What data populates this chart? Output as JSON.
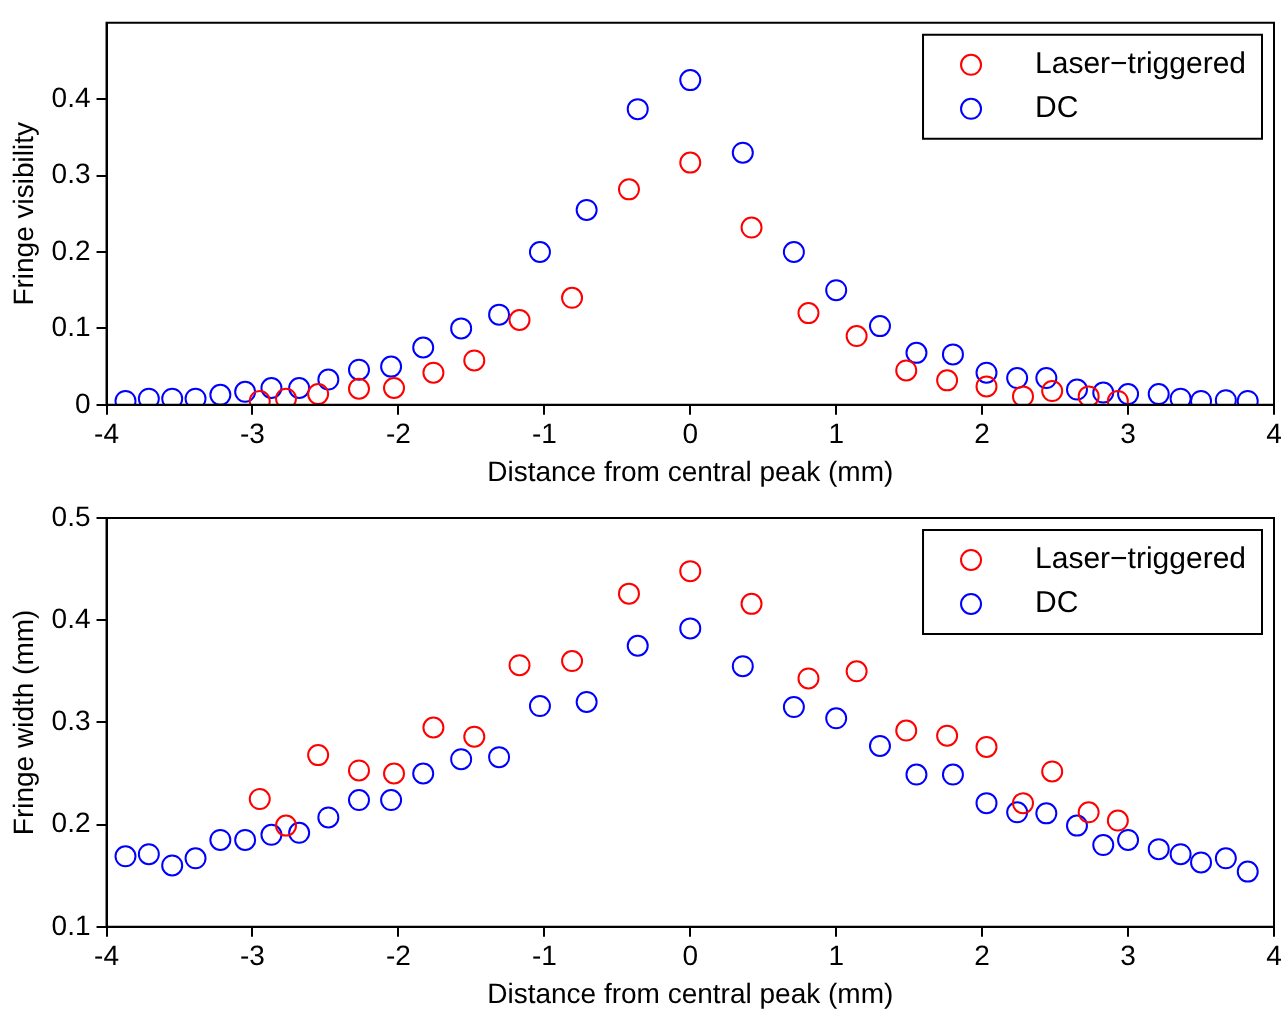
{
  "chart_data": [
    {
      "type": "scatter",
      "xlabel": "Distance from central peak (mm)",
      "ylabel": "Fringe visibility",
      "xlim": [
        -4,
        4
      ],
      "xticks": [
        -4,
        -3,
        -2,
        -1,
        0,
        1,
        2,
        3,
        4
      ],
      "ylim": [
        0,
        0.5
      ],
      "yticks": [
        0,
        0.1,
        0.2,
        0.3,
        0.4
      ],
      "legend": "top right",
      "marker": "circle",
      "grid": false,
      "series": [
        {
          "name": "Laser−triggered",
          "color": "#ff0000",
          "x": [
            -2.95,
            -2.77,
            -2.55,
            -2.27,
            -2.03,
            -1.76,
            -1.48,
            -1.17,
            -0.81,
            -0.42,
            0,
            0.42,
            0.81,
            1.14,
            1.48,
            1.76,
            2.03,
            2.28,
            2.48,
            2.73,
            2.93
          ],
          "values": [
            0.005,
            0.008,
            0.014,
            0.021,
            0.022,
            0.042,
            0.058,
            0.111,
            0.14,
            0.282,
            0.317,
            0.232,
            0.12,
            0.09,
            0.045,
            0.032,
            0.024,
            0.011,
            0.018,
            0.011,
            0.005
          ]
        },
        {
          "name": "DC",
          "color": "#0000ff",
          "x": [
            -3.87,
            -3.71,
            -3.55,
            -3.39,
            -3.22,
            -3.05,
            -2.87,
            -2.68,
            -2.48,
            -2.27,
            -2.05,
            -1.83,
            -1.57,
            -1.31,
            -1.03,
            -0.71,
            -0.36,
            0,
            0.36,
            0.71,
            1.0,
            1.3,
            1.55,
            1.8,
            2.03,
            2.24,
            2.44,
            2.65,
            2.83,
            3.0,
            3.21,
            3.36,
            3.5,
            3.67,
            3.82
          ],
          "values": [
            0.005,
            0.008,
            0.008,
            0.008,
            0.013,
            0.017,
            0.022,
            0.022,
            0.033,
            0.046,
            0.05,
            0.075,
            0.1,
            0.118,
            0.2,
            0.255,
            0.387,
            0.425,
            0.33,
            0.2,
            0.15,
            0.103,
            0.068,
            0.066,
            0.042,
            0.035,
            0.035,
            0.02,
            0.016,
            0.014,
            0.014,
            0.008,
            0.005,
            0.006,
            0.005
          ]
        }
      ]
    },
    {
      "type": "scatter",
      "xlabel": "Distance from central peak (mm)",
      "ylabel": "Fringe width (mm)",
      "xlim": [
        -4,
        4
      ],
      "xticks": [
        -4,
        -3,
        -2,
        -1,
        0,
        1,
        2,
        3,
        4
      ],
      "ylim": [
        0.1,
        0.5
      ],
      "yticks": [
        0.1,
        0.2,
        0.3,
        0.4,
        0.5
      ],
      "legend": "top right",
      "marker": "circle",
      "grid": false,
      "series": [
        {
          "name": "Laser−triggered",
          "color": "#ff0000",
          "x": [
            -2.95,
            -2.77,
            -2.55,
            -2.27,
            -2.03,
            -1.76,
            -1.48,
            -1.17,
            -0.81,
            -0.42,
            0,
            0.42,
            0.81,
            1.14,
            1.48,
            1.76,
            2.03,
            2.28,
            2.48,
            2.73,
            2.93
          ],
          "values": [
            0.225,
            0.199,
            0.268,
            0.253,
            0.25,
            0.295,
            0.286,
            0.356,
            0.36,
            0.426,
            0.448,
            0.416,
            0.343,
            0.35,
            0.292,
            0.287,
            0.276,
            0.221,
            0.252,
            0.212,
            0.204
          ]
        },
        {
          "name": "DC",
          "color": "#0000ff",
          "x": [
            -3.87,
            -3.71,
            -3.55,
            -3.39,
            -3.22,
            -3.05,
            -2.87,
            -2.68,
            -2.48,
            -2.27,
            -2.05,
            -1.83,
            -1.57,
            -1.31,
            -1.03,
            -0.71,
            -0.36,
            0,
            0.36,
            0.71,
            1.0,
            1.3,
            1.55,
            1.8,
            2.03,
            2.24,
            2.44,
            2.65,
            2.83,
            3.0,
            3.21,
            3.36,
            3.5,
            3.67,
            3.82
          ],
          "values": [
            0.169,
            0.171,
            0.16,
            0.167,
            0.185,
            0.185,
            0.19,
            0.192,
            0.207,
            0.224,
            0.224,
            0.25,
            0.264,
            0.266,
            0.316,
            0.32,
            0.375,
            0.392,
            0.355,
            0.315,
            0.304,
            0.277,
            0.249,
            0.249,
            0.221,
            0.212,
            0.211,
            0.199,
            0.18,
            0.185,
            0.176,
            0.171,
            0.163,
            0.167,
            0.154
          ]
        }
      ]
    }
  ]
}
